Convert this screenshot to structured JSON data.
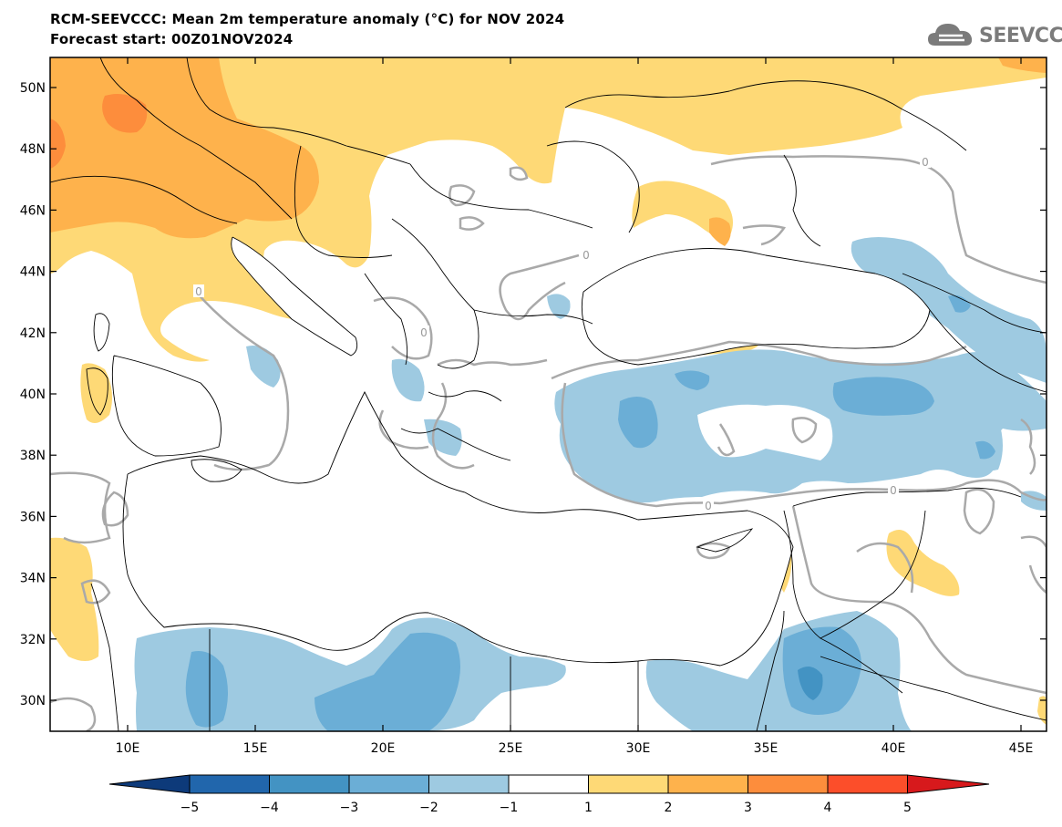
{
  "header": {
    "title": "RCM-SEEVCCC: Mean 2m temperature anomaly (°C) for NOV 2024",
    "subtitle": "Forecast start: 00Z01NOV2024"
  },
  "logo": {
    "text": "SEEVCCC",
    "icon": "cloud-icon"
  },
  "map": {
    "lat_labels": [
      "50N",
      "48N",
      "46N",
      "44N",
      "42N",
      "40N",
      "38N",
      "36N",
      "34N",
      "32N",
      "30N"
    ],
    "lon_labels": [
      "10E",
      "15E",
      "20E",
      "25E",
      "30E",
      "35E",
      "40E",
      "45E"
    ],
    "contour_label": "0"
  },
  "colorbar": {
    "ticks": [
      "−5",
      "−4",
      "−3",
      "−2",
      "−1",
      "1",
      "2",
      "3",
      "4",
      "5"
    ],
    "colors": [
      "#0d3a7a",
      "#2166ac",
      "#4393c3",
      "#6baed6",
      "#9ecae1",
      "#ffffff",
      "#fed976",
      "#feb24c",
      "#fd8d3c",
      "#fc4e2a",
      "#d7191c"
    ]
  }
}
